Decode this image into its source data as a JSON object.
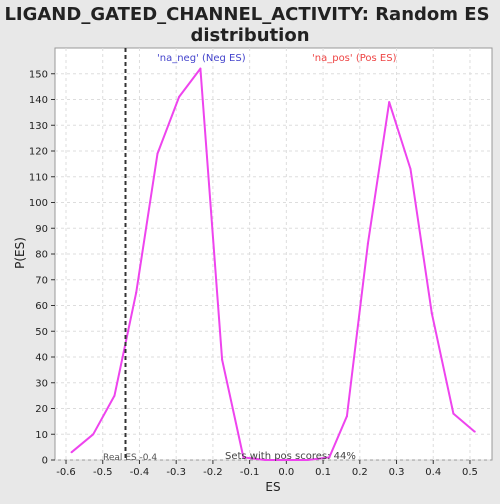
{
  "chart_data": {
    "type": "line",
    "title_line1": "LIGAND_GATED_CHANNEL_ACTIVITY: Random ES",
    "title_line2": "distribution",
    "xlabel": "ES",
    "ylabel": "P(ES)",
    "xlim": [
      -0.63,
      0.56
    ],
    "ylim": [
      0,
      160
    ],
    "x_ticks": [
      -0.6,
      -0.5,
      -0.4,
      -0.3,
      -0.2,
      -0.1,
      0.0,
      0.1,
      0.2,
      0.3,
      0.4,
      0.5
    ],
    "x_tick_labels": [
      "-0.6",
      "-0.5",
      "-0.4",
      "-0.3",
      "-0.2",
      "-0.1",
      "0.0",
      "0.1",
      "0.2",
      "0.3",
      "0.4",
      "0.5"
    ],
    "y_ticks": [
      0,
      10,
      20,
      30,
      40,
      50,
      60,
      70,
      80,
      90,
      100,
      110,
      120,
      130,
      140,
      150
    ],
    "grid": true,
    "series": [
      {
        "color": "#ee44ee",
        "x": [
          -0.585,
          -0.526,
          -0.468,
          -0.409,
          -0.351,
          -0.292,
          -0.234,
          -0.175,
          -0.117,
          -0.058,
          0.0,
          0.058,
          0.117,
          0.165,
          0.222,
          0.28,
          0.338,
          0.396,
          0.455,
          0.513
        ],
        "y": [
          3,
          10,
          25,
          65,
          119,
          141,
          152,
          39,
          1,
          0,
          0,
          0,
          1,
          17,
          84,
          139,
          113,
          57,
          18,
          11
        ]
      }
    ],
    "legend": [
      {
        "label": "'na_neg' (Neg ES)",
        "color": "#4444cc"
      },
      {
        "label": "'na_pos' (Pos ES)",
        "color": "#ee4444"
      }
    ],
    "real_es": {
      "x": -0.438,
      "label": "Real ES -0.4"
    },
    "annotation": "Sets with pos scores: 44%"
  }
}
